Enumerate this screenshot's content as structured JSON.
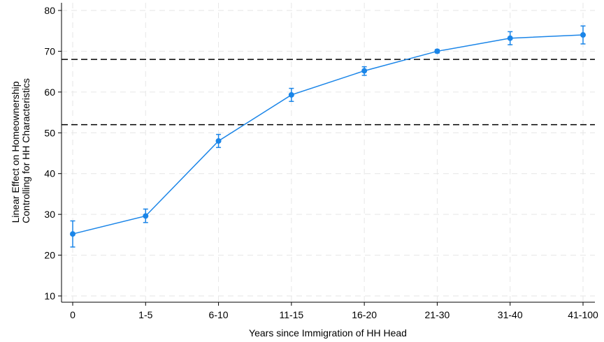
{
  "chart_data": {
    "type": "line",
    "title": "",
    "xlabel": "Years since Immigration of HH Head",
    "ylabel_lines": [
      "Linear Effect on Homeownership",
      "Controlling for HH Characteristics"
    ],
    "categories": [
      "0",
      "1-5",
      "6-10",
      "11-15",
      "16-20",
      "21-30",
      "31-40",
      "41-100"
    ],
    "ylim": [
      10,
      80
    ],
    "yticks": [
      10,
      20,
      30,
      40,
      50,
      60,
      70,
      80
    ],
    "grid": true,
    "series": [
      {
        "values": [
          25.2,
          29.6,
          48.0,
          59.3,
          65.2,
          70.0,
          73.2,
          74.0
        ],
        "ci_low": [
          22.0,
          28.0,
          46.4,
          57.7,
          64.1,
          69.6,
          71.6,
          71.8
        ],
        "ci_high": [
          28.4,
          31.3,
          49.6,
          60.9,
          66.2,
          70.4,
          74.8,
          76.2
        ],
        "color": "#1a85e8"
      }
    ],
    "reference_lines": [
      {
        "y": 52.0,
        "style": "dashed",
        "color": "#000000"
      },
      {
        "y": 68.0,
        "style": "dashed",
        "color": "#000000"
      }
    ]
  }
}
